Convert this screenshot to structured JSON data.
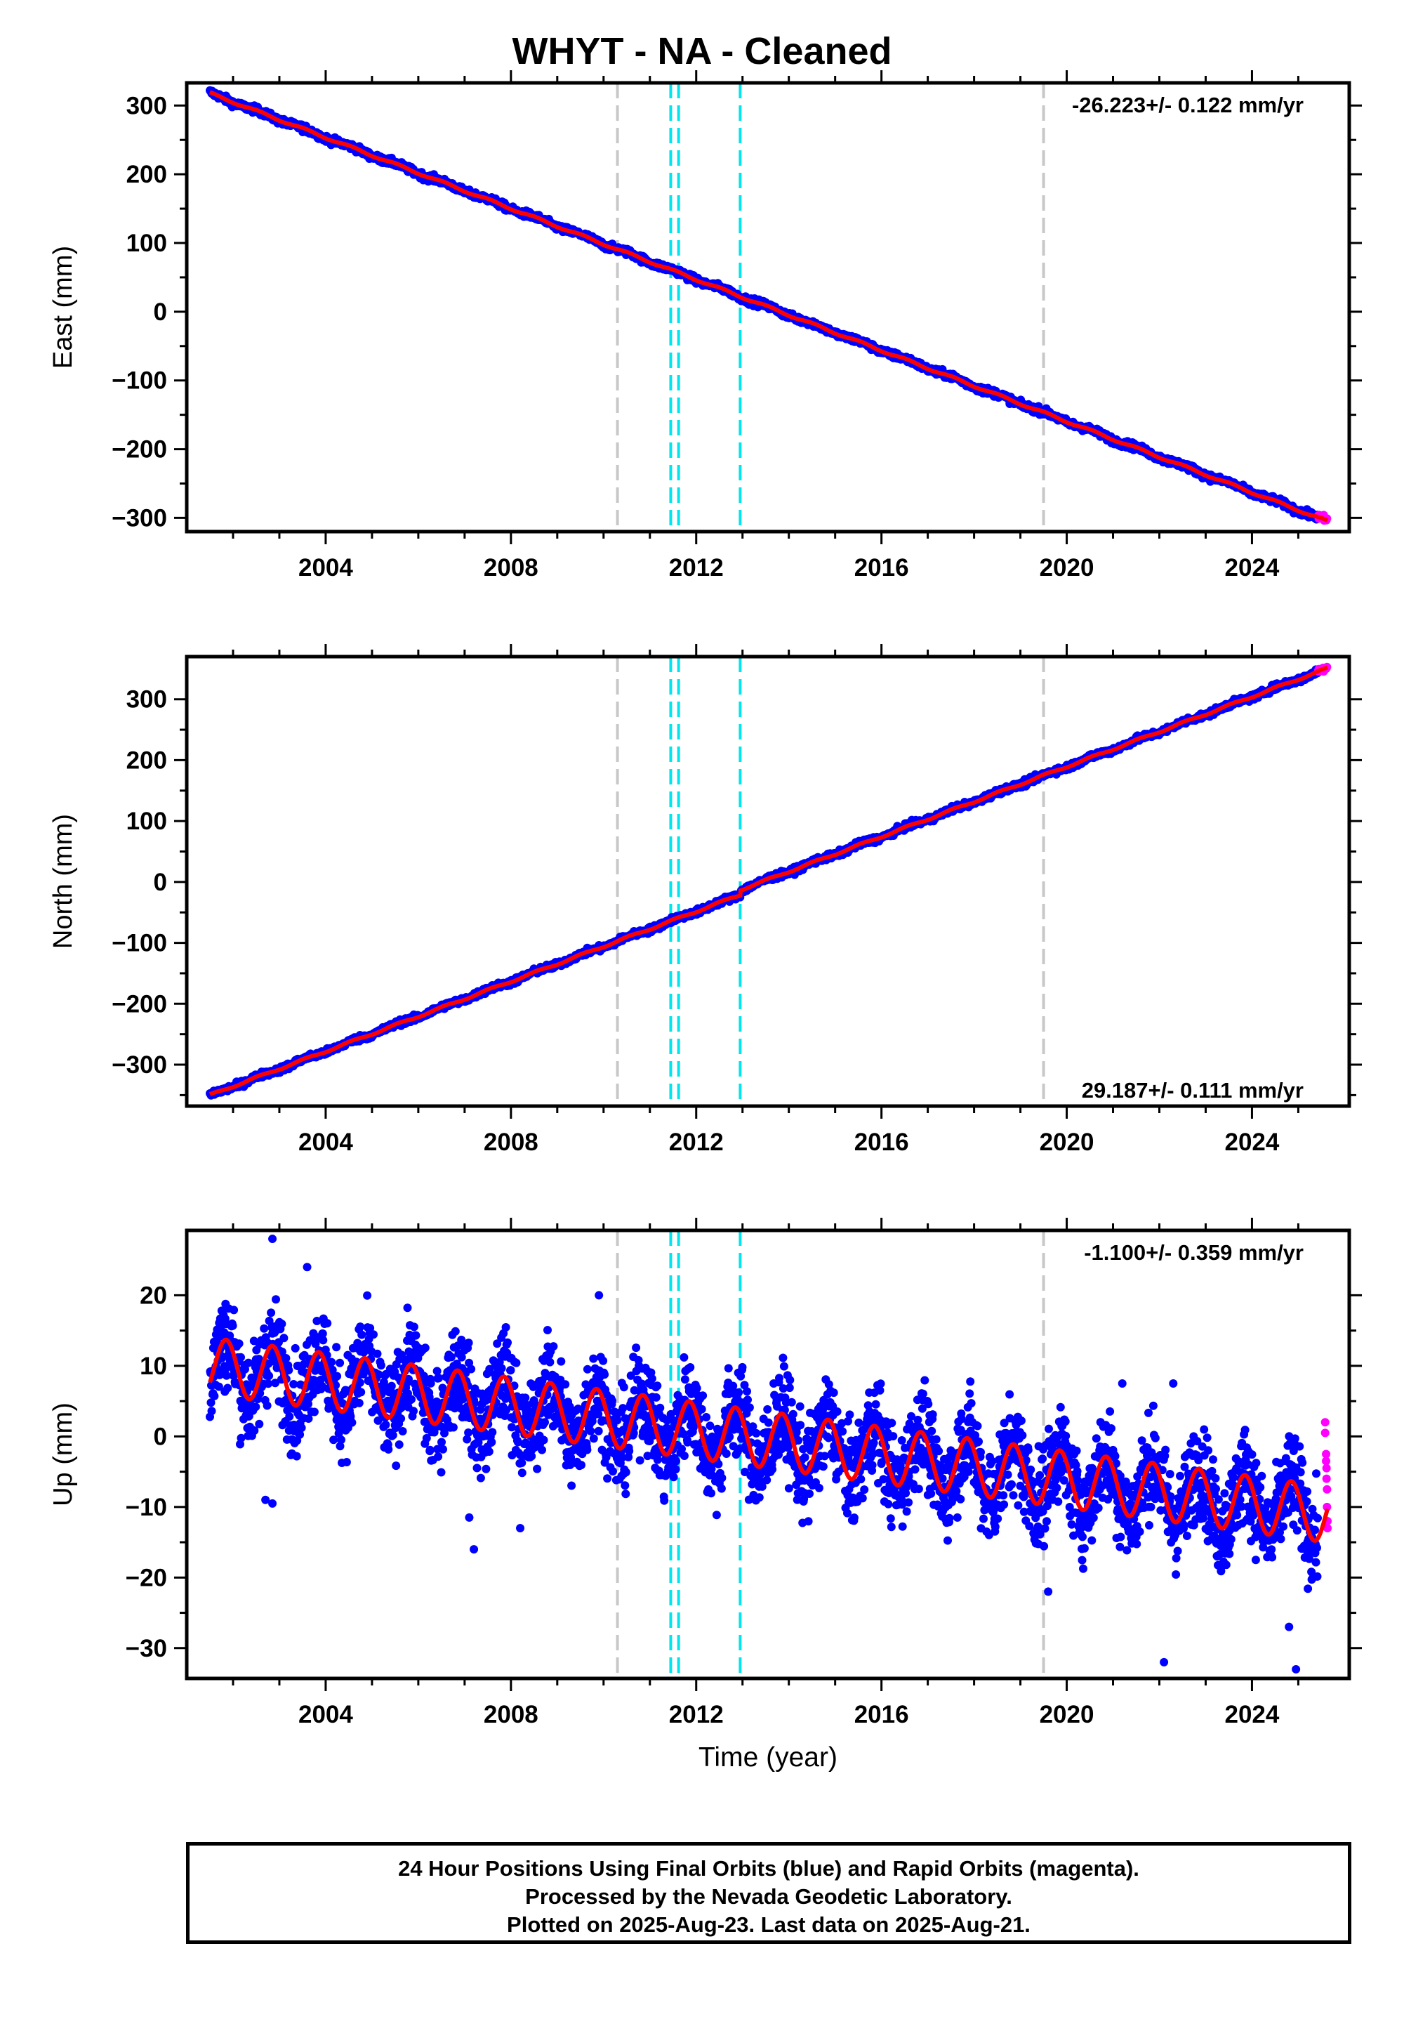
{
  "title": "WHYT  - NA - Cleaned",
  "x_label": "Time (year)",
  "colors": {
    "final_points": "#0000ff",
    "rapid_points": "#ff00ff",
    "model": "#ff0000",
    "equipment_change": "#c8c8c8",
    "earthquake": "#00e5ee"
  },
  "footer": {
    "line1": "24 Hour Positions Using Final Orbits (blue) and Rapid Orbits (magenta).",
    "line2": "Processed by the Nevada Geodetic Laboratory.",
    "line3": "Plotted on 2025-Aug-23. Last data on 2025-Aug-21."
  },
  "chart_data": [
    {
      "type": "scatter",
      "component": "East",
      "ylabel": "East (mm)",
      "xlim": [
        2001.0,
        2026.1
      ],
      "ylim": [
        -320,
        333
      ],
      "x_ticks": [
        2004,
        2008,
        2012,
        2016,
        2020,
        2024
      ],
      "y_ticks": [
        300,
        200,
        100,
        0,
        -100,
        -200,
        -300
      ],
      "rate_label": "-26.223+/- 0.122 mm/yr",
      "rate_position": "top-right",
      "start": {
        "x": 2001.5,
        "y": 318
      },
      "end": {
        "x": 2025.63,
        "y": -305
      },
      "seasonal_amplitude_mm": 1.5,
      "scatter_mm": 2.5,
      "offsets": [],
      "rapid_points_from": 2025.42,
      "vlines_gray": [
        2010.3,
        2019.5
      ],
      "vlines_cyan": [
        2011.45,
        2011.62,
        2012.95
      ]
    },
    {
      "type": "scatter",
      "component": "North",
      "ylabel": "North (mm)",
      "xlim": [
        2001.0,
        2026.1
      ],
      "ylim": [
        -368,
        370
      ],
      "x_ticks": [
        2004,
        2008,
        2012,
        2016,
        2020,
        2024
      ],
      "y_ticks": [
        300,
        200,
        100,
        0,
        -100,
        -200,
        -300
      ],
      "rate_label": "29.187+/- 0.111 mm/yr",
      "rate_position": "bottom-right",
      "start": {
        "x": 2001.5,
        "y": -350
      },
      "end": {
        "x": 2025.63,
        "y": 351
      },
      "seasonal_amplitude_mm": 1.5,
      "scatter_mm": 2.5,
      "offsets": [
        {
          "x": 2012.95,
          "dy": 8
        }
      ],
      "rapid_points_from": 2025.42,
      "vlines_gray": [
        2010.3,
        2019.5
      ],
      "vlines_cyan": [
        2011.45,
        2011.62,
        2012.95
      ]
    },
    {
      "type": "scatter",
      "component": "Up",
      "ylabel": "Up (mm)",
      "xlim": [
        2001.0,
        2026.1
      ],
      "ylim": [
        -34.3,
        29.2
      ],
      "x_ticks": [
        2004,
        2008,
        2012,
        2016,
        2020,
        2024
      ],
      "y_ticks": [
        20,
        10,
        0,
        -10,
        -20,
        -30
      ],
      "rate_label": "-1.100+/- 0.359 mm/yr",
      "rate_position": "top-right",
      "model_start": {
        "x": 2001.5,
        "y": 10
      },
      "model_end": {
        "x": 2025.6,
        "y": -12
      },
      "model_trend": {
        "start": 11,
        "end": -10
      },
      "seasonal_amplitude_mm": 4,
      "scatter_mm": 3.4,
      "outliers": [
        {
          "x": 2002.85,
          "y": 28
        },
        {
          "x": 2003.6,
          "y": 24
        },
        {
          "x": 2009.9,
          "y": 20
        },
        {
          "x": 2007.1,
          "y": -11.5
        },
        {
          "x": 2007.2,
          "y": -16
        },
        {
          "x": 2008.2,
          "y": -13
        },
        {
          "x": 2002.85,
          "y": -9.5
        },
        {
          "x": 2002.7,
          "y": -9
        },
        {
          "x": 2022.1,
          "y": -32
        },
        {
          "x": 2024.95,
          "y": -33
        },
        {
          "x": 2024.8,
          "y": -27
        },
        {
          "x": 2019.6,
          "y": -22
        },
        {
          "x": 2021.2,
          "y": 7.5
        },
        {
          "x": 2022.3,
          "y": 7.5
        }
      ],
      "rapid_points": [
        {
          "x": 2025.58,
          "y": 2
        },
        {
          "x": 2025.58,
          "y": 0.5
        },
        {
          "x": 2025.6,
          "y": -2.5
        },
        {
          "x": 2025.6,
          "y": -3.5
        },
        {
          "x": 2025.61,
          "y": -4.5
        },
        {
          "x": 2025.61,
          "y": -6
        },
        {
          "x": 2025.62,
          "y": -7.5
        },
        {
          "x": 2025.62,
          "y": -10
        },
        {
          "x": 2025.63,
          "y": -12
        },
        {
          "x": 2025.63,
          "y": -13
        }
      ],
      "vlines_gray": [
        2010.3,
        2019.5
      ],
      "vlines_cyan": [
        2011.45,
        2011.62,
        2012.95
      ]
    }
  ]
}
